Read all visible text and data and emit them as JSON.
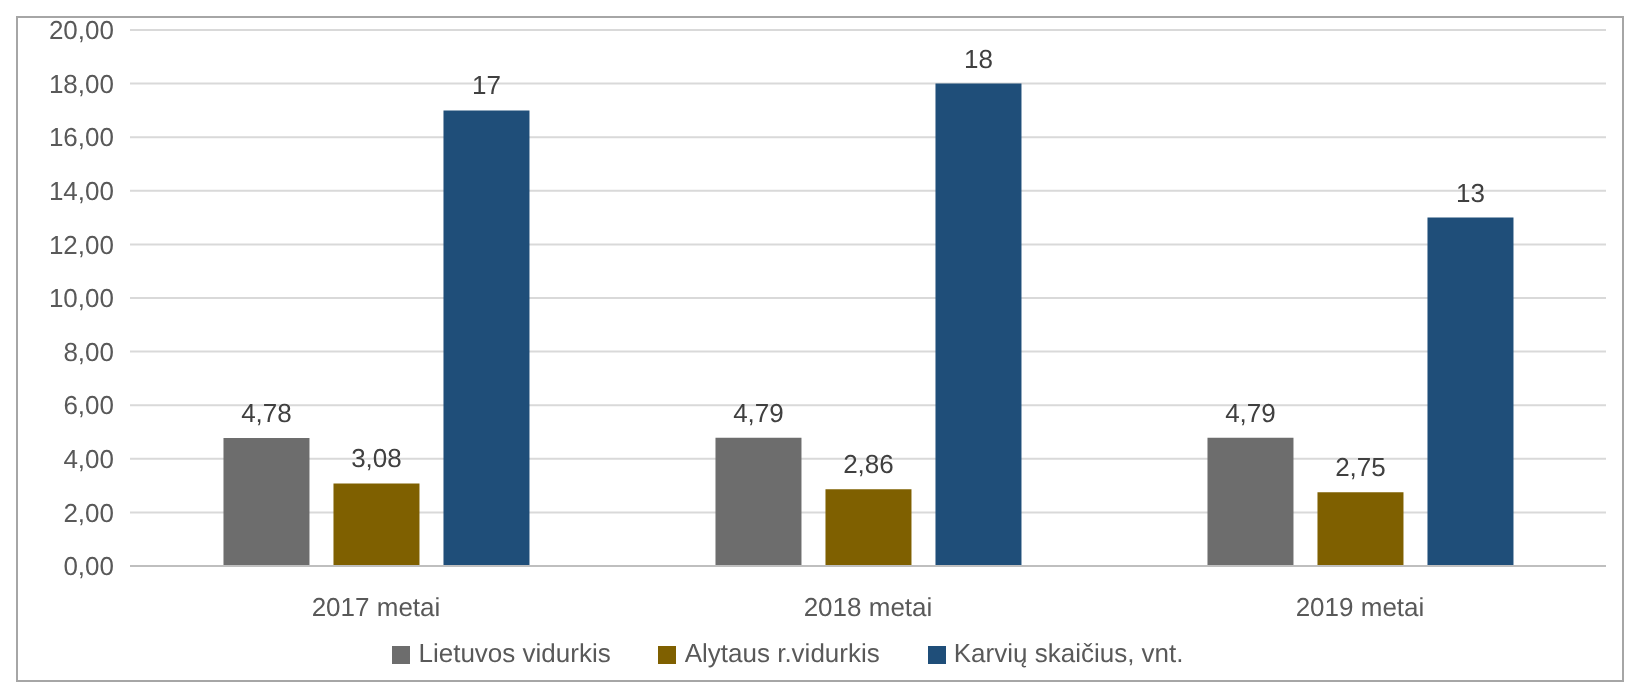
{
  "chart_data": {
    "type": "bar",
    "categories": [
      "2017 metai",
      "2018 metai",
      "2019 metai"
    ],
    "series": [
      {
        "name": "Lietuvos vidurkis",
        "color": "#6d6d6d",
        "values": [
          4.78,
          4.79,
          4.79
        ],
        "value_labels": [
          "4,78",
          "4,79",
          "4,79"
        ]
      },
      {
        "name": "Alytaus r.vidurkis",
        "color": "#7f6000",
        "values": [
          3.08,
          2.86,
          2.75
        ],
        "value_labels": [
          "3,08",
          "2,86",
          "2,75"
        ]
      },
      {
        "name": "Karvių skaičius, vnt.",
        "color": "#1f4e79",
        "values": [
          17,
          18,
          13
        ],
        "value_labels": [
          "17",
          "18",
          "13"
        ]
      }
    ],
    "ylim": [
      0,
      20
    ],
    "yticks": [
      {
        "value": 0,
        "label": "0,00"
      },
      {
        "value": 2,
        "label": "2,00"
      },
      {
        "value": 4,
        "label": "4,00"
      },
      {
        "value": 6,
        "label": "6,00"
      },
      {
        "value": 8,
        "label": "8,00"
      },
      {
        "value": 10,
        "label": "10,00"
      },
      {
        "value": 12,
        "label": "12,00"
      },
      {
        "value": 14,
        "label": "14,00"
      },
      {
        "value": 16,
        "label": "16,00"
      },
      {
        "value": 18,
        "label": "18,00"
      },
      {
        "value": 20,
        "label": "20,00"
      }
    ],
    "grid": "y",
    "legend": "bottom"
  }
}
